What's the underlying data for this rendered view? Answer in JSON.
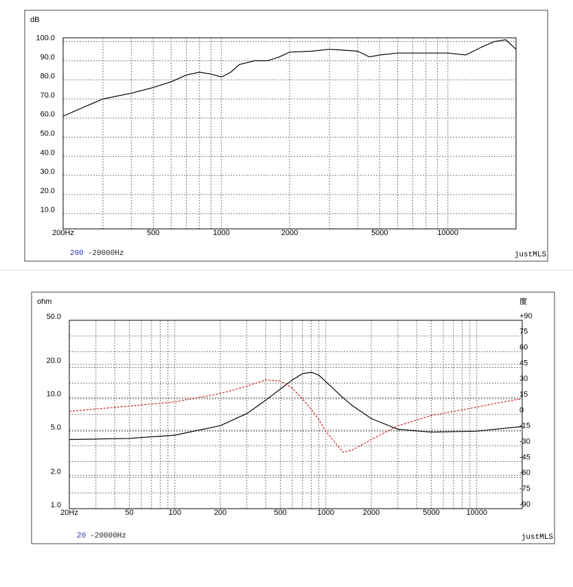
{
  "chart_data": [
    {
      "type": "line",
      "y_label": "dB",
      "log_x": true,
      "grid": true,
      "xlim": [
        200,
        20000
      ],
      "ylim": [
        2,
        102
      ],
      "xticks": [
        {
          "value": 200,
          "label": "200Hz"
        },
        500,
        1000,
        2000,
        5000,
        10000
      ],
      "xminor": [
        300,
        400,
        600,
        700,
        800,
        900,
        3000,
        4000,
        6000,
        7000,
        8000,
        9000
      ],
      "yticks": [
        {
          "value": 10,
          "label": "10.0"
        },
        {
          "value": 20,
          "label": "20.0"
        },
        {
          "value": 30,
          "label": "30.0"
        },
        {
          "value": 40,
          "label": "40.0"
        },
        {
          "value": 50,
          "label": "50.0"
        },
        {
          "value": 60,
          "label": "60.0"
        },
        {
          "value": 70,
          "label": "70.0"
        },
        {
          "value": 80,
          "label": "80.0"
        },
        {
          "value": 90,
          "label": "90.0"
        },
        {
          "value": 100,
          "label": "100.0"
        }
      ],
      "x": [
        200,
        250,
        300,
        400,
        500,
        600,
        700,
        800,
        900,
        1000,
        1100,
        1200,
        1400,
        1600,
        1800,
        2000,
        2500,
        3000,
        3500,
        4000,
        4500,
        5000,
        6000,
        7000,
        8000,
        10000,
        12000,
        14000,
        16000,
        18000,
        20000
      ],
      "series": [
        {
          "color": "#000000",
          "values": [
            61,
            66,
            70,
            73,
            76,
            79,
            82.5,
            84,
            83,
            81.5,
            84,
            88,
            90,
            90,
            92,
            94.5,
            95,
            96,
            95.5,
            95,
            92,
            93,
            94,
            94,
            94,
            94,
            93,
            97,
            100,
            101,
            96
          ]
        }
      ],
      "range_start": "200",
      "range_end": "-20000Hz",
      "brand": "justMLS"
    },
    {
      "type": "line",
      "y_label": "ohm",
      "y2_label": "度",
      "log_x": true,
      "log_y": true,
      "grid": true,
      "xlim": [
        20,
        20000
      ],
      "ylim": [
        1,
        50
      ],
      "y2lim": [
        -90,
        90
      ],
      "xticks": [
        {
          "value": 20,
          "label": "20Hz"
        },
        50,
        100,
        200,
        500,
        1000,
        2000,
        5000,
        10000
      ],
      "xminor": [
        30,
        40,
        60,
        70,
        80,
        90,
        300,
        400,
        600,
        700,
        800,
        900,
        3000,
        4000,
        6000,
        7000,
        8000,
        9000
      ],
      "yticks": [
        {
          "value": 1,
          "label": "1.0"
        },
        {
          "value": 2,
          "label": "2.0"
        },
        {
          "value": 5,
          "label": "5.0"
        },
        {
          "value": 10,
          "label": "10.0"
        },
        {
          "value": 20,
          "label": "20.0"
        },
        {
          "value": 50,
          "label": "50.0"
        }
      ],
      "y2ticks": [
        -90,
        -75,
        -60,
        -45,
        -30,
        -15,
        0,
        15,
        30,
        45,
        60,
        75,
        {
          "value": 90,
          "label": "+90"
        }
      ],
      "x": [
        20,
        50,
        100,
        200,
        300,
        400,
        500,
        600,
        700,
        800,
        900,
        1000,
        1300,
        1500,
        2000,
        3000,
        5000,
        10000,
        15000,
        20000
      ],
      "series": [
        {
          "color": "#000000",
          "values": [
            4.2,
            4.3,
            4.6,
            5.6,
            7.2,
            9.5,
            12,
            14.5,
            16.5,
            17,
            16,
            14,
            10,
            8.5,
            6.5,
            5.2,
            4.9,
            5.0,
            5.3,
            5.5
          ]
        },
        {
          "color": "#cc2222",
          "axis": "y2",
          "dashed": true,
          "values": [
            3,
            8,
            12,
            20,
            27,
            33,
            32,
            25,
            15,
            5,
            -5,
            -16,
            -36,
            -34,
            -24,
            -11,
            -1,
            7,
            12,
            15
          ]
        }
      ],
      "range_start": "20",
      "range_end": "-20000Hz",
      "brand": "justMLS"
    }
  ]
}
